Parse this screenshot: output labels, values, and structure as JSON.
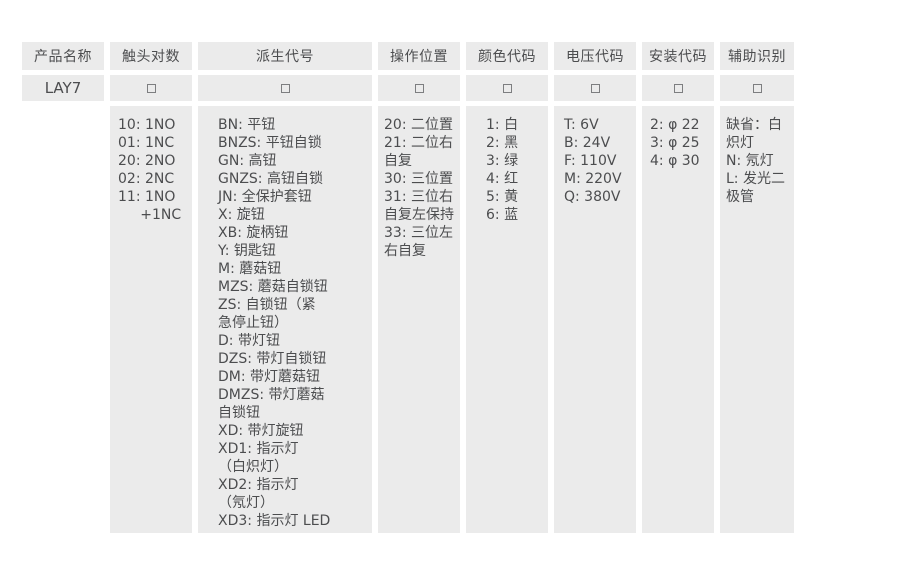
{
  "colors": {
    "page_background": "#ffffff",
    "cell_background": "#ebebeb",
    "text": "#4c4d4f",
    "code_box_border": "#7d7e80"
  },
  "table": {
    "product_name": "LAY7",
    "code_box_symbol": "□",
    "columns": [
      {
        "id": "product-name",
        "header": "产品名称",
        "value_row": "LAY7",
        "body_lines": []
      },
      {
        "id": "contact-pairs",
        "header": "触头对数",
        "value_row": "□",
        "body_lines": [
          "10: 1NO",
          "01: 1NC",
          "20: 2NO",
          "02: 2NC",
          "11: 1NO",
          "     +1NC"
        ]
      },
      {
        "id": "derivative-code",
        "header": "派生代号",
        "value_row": "□",
        "body_lines": [
          "BN: 平钮",
          "BNZS: 平钮自锁",
          "GN: 高钮",
          "GNZS: 高钮自锁",
          "JN: 全保护套钮",
          "X: 旋钮",
          "XB: 旋柄钮",
          "Y: 钥匙钮",
          "M: 蘑菇钮",
          "MZS: 蘑菇自锁钮",
          "ZS: 自锁钮（紧",
          "急停止钮）",
          "D: 带灯钮",
          "DZS: 带灯自锁钮",
          "DM: 带灯蘑菇钮",
          "DMZS: 带灯蘑菇",
          "自锁钮",
          "XD: 带灯旋钮",
          "XD1: 指示灯",
          "（白炽灯）",
          "XD2: 指示灯",
          "（氖灯）",
          "XD3: 指示灯 LED"
        ]
      },
      {
        "id": "operation-position",
        "header": "操作位置",
        "value_row": "□",
        "body_lines": [
          "20: 二位置",
          "21: 二位右",
          "自复",
          "30: 三位置",
          "31: 三位右",
          "自复左保持",
          "33: 三位左",
          "右自复"
        ]
      },
      {
        "id": "color-code",
        "header": "颜色代码",
        "value_row": "□",
        "body_lines": [
          "1: 白",
          "2: 黑",
          "3: 绿",
          "4: 红",
          "5: 黄",
          "6: 蓝"
        ]
      },
      {
        "id": "voltage-code",
        "header": "电压代码",
        "value_row": "□",
        "body_lines": [
          "T: 6V",
          "B: 24V",
          "F: 110V",
          "M: 220V",
          "Q: 380V"
        ]
      },
      {
        "id": "mounting-code",
        "header": "安装代码",
        "value_row": "□",
        "body_lines": [
          "2: φ 22",
          "3: φ 25",
          "4: φ 30"
        ]
      },
      {
        "id": "auxiliary-id",
        "header": "辅助识别",
        "value_row": "□",
        "body_lines": [
          "缺省：白",
          "炽灯",
          "N: 氖灯",
          "L: 发光二",
          "极管"
        ]
      }
    ]
  }
}
